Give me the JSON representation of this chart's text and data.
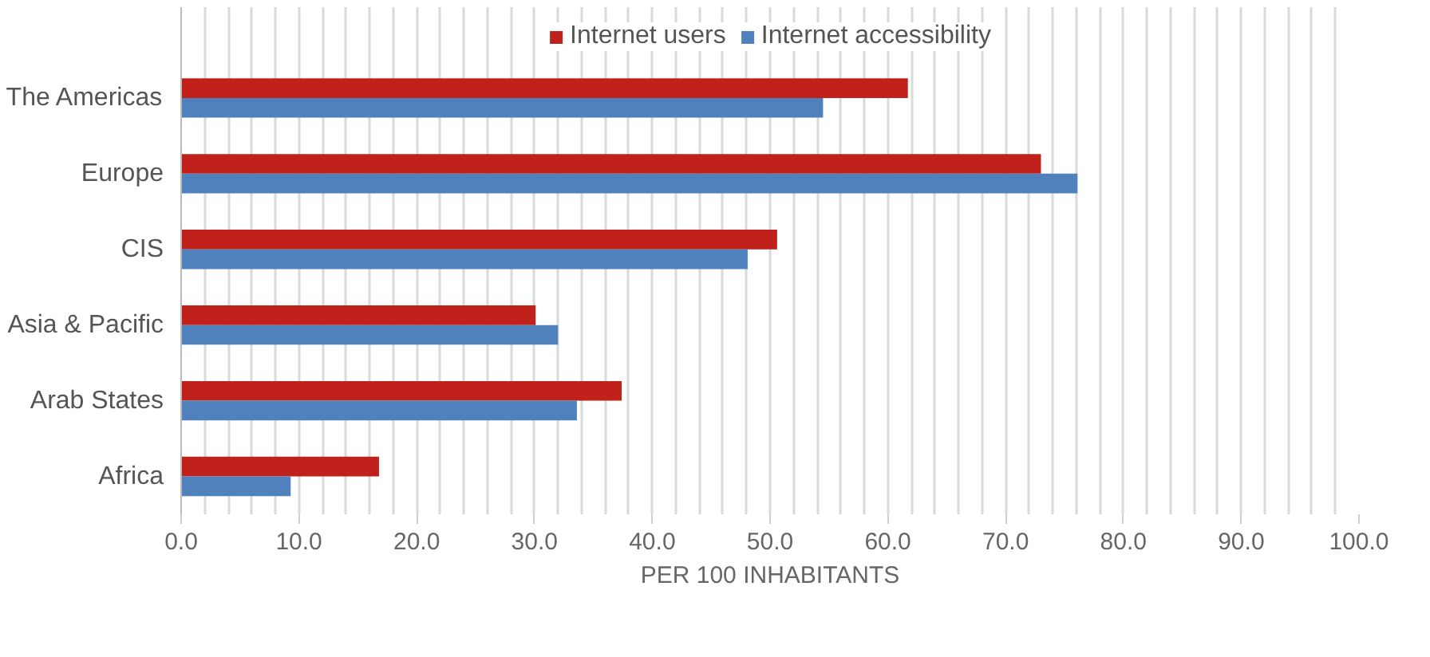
{
  "chart_data": {
    "type": "bar",
    "orientation": "horizontal",
    "xlabel": "PER 100 INHABITANTS",
    "categories": [
      "The Americas",
      "Europe",
      "CIS",
      "Asia & Pacific",
      "Arab States",
      "Africa"
    ],
    "series": [
      {
        "name": "Internet users",
        "color": "#c0211a",
        "values": [
          61.7,
          73.0,
          50.6,
          30.1,
          37.4,
          16.8
        ]
      },
      {
        "name": "Internet accessibility",
        "color": "#4f81bd",
        "values": [
          54.5,
          76.1,
          48.1,
          32.0,
          33.6,
          9.3
        ]
      }
    ],
    "xlim": [
      0,
      100
    ],
    "xticks": [
      {
        "value": 0,
        "label": "0.0"
      },
      {
        "value": 10,
        "label": "10.0"
      },
      {
        "value": 20,
        "label": "20.0"
      },
      {
        "value": 30,
        "label": "30.0"
      },
      {
        "value": 40,
        "label": "40.0"
      },
      {
        "value": 50,
        "label": "50.0"
      },
      {
        "value": 60,
        "label": "60.0"
      },
      {
        "value": 70,
        "label": "70.0"
      },
      {
        "value": 80,
        "label": "80.0"
      },
      {
        "value": 90,
        "label": "90.0"
      },
      {
        "value": 100,
        "label": "100.0"
      }
    ],
    "grid": "x",
    "legend": "top"
  }
}
